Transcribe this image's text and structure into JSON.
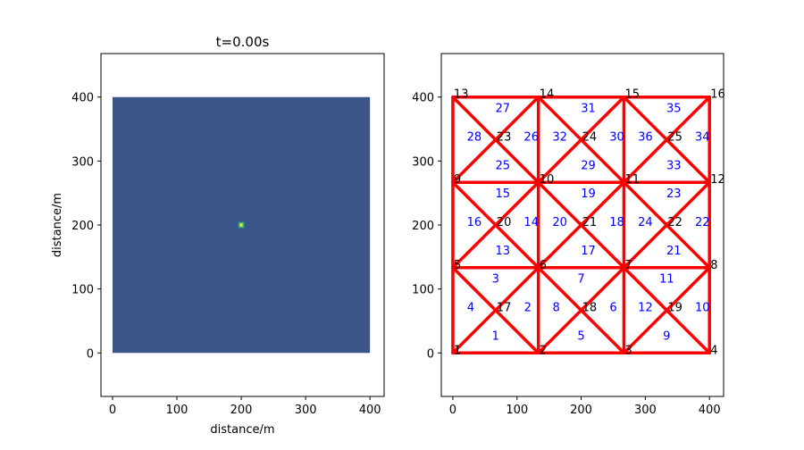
{
  "chart_data": [
    {
      "type": "heatmap",
      "title": "t=0.00s",
      "xlabel": "distance/m",
      "ylabel": "distance/m",
      "xlim": [
        -18,
        422
      ],
      "ylim": [
        -68,
        468
      ],
      "xticks": [
        0,
        100,
        200,
        300,
        400
      ],
      "yticks": [
        0,
        100,
        200,
        300,
        400
      ],
      "field_extent": [
        0,
        400,
        0,
        400
      ],
      "background_color": "#3b568b",
      "source": {
        "x": 200,
        "y": 200,
        "size": 10,
        "colors": [
          "#fde725",
          "#5ec962",
          "#21918c"
        ]
      }
    },
    {
      "type": "mesh",
      "title": "",
      "xlabel": "",
      "ylabel": "",
      "xlim": [
        -18,
        422
      ],
      "ylim": [
        -68,
        468
      ],
      "xticks": [
        0,
        100,
        200,
        300,
        400
      ],
      "yticks": [
        0,
        100,
        200,
        300,
        400
      ],
      "line_color": "#ff0000",
      "nodes": [
        {
          "id": "1",
          "x": 0,
          "y": 0
        },
        {
          "id": "2",
          "x": 133.33,
          "y": 0
        },
        {
          "id": "3",
          "x": 266.67,
          "y": 0
        },
        {
          "id": "4",
          "x": 400,
          "y": 0
        },
        {
          "id": "5",
          "x": 0,
          "y": 133.33
        },
        {
          "id": "6",
          "x": 133.33,
          "y": 133.33
        },
        {
          "id": "7",
          "x": 266.67,
          "y": 133.33
        },
        {
          "id": "8",
          "x": 400,
          "y": 133.33
        },
        {
          "id": "9",
          "x": 0,
          "y": 266.67
        },
        {
          "id": "10",
          "x": 133.33,
          "y": 266.67
        },
        {
          "id": "11",
          "x": 266.67,
          "y": 266.67
        },
        {
          "id": "12",
          "x": 400,
          "y": 266.67
        },
        {
          "id": "13",
          "x": 0,
          "y": 400
        },
        {
          "id": "14",
          "x": 133.33,
          "y": 400
        },
        {
          "id": "15",
          "x": 266.67,
          "y": 400
        },
        {
          "id": "16",
          "x": 400,
          "y": 400
        },
        {
          "id": "17",
          "x": 66.67,
          "y": 66.67
        },
        {
          "id": "18",
          "x": 200,
          "y": 66.67
        },
        {
          "id": "19",
          "x": 333.33,
          "y": 66.67
        },
        {
          "id": "20",
          "x": 66.67,
          "y": 200
        },
        {
          "id": "21",
          "x": 200,
          "y": 200
        },
        {
          "id": "22",
          "x": 333.33,
          "y": 200
        },
        {
          "id": "23",
          "x": 66.67,
          "y": 333.33
        },
        {
          "id": "24",
          "x": 200,
          "y": 333.33
        },
        {
          "id": "25",
          "x": 333.33,
          "y": 333.33
        }
      ],
      "elements": [
        {
          "id": "1",
          "x": 66.67,
          "y": 27.78
        },
        {
          "id": "2",
          "x": 116.67,
          "y": 72.22
        },
        {
          "id": "3",
          "x": 66.67,
          "y": 116.67
        },
        {
          "id": "4",
          "x": 27.78,
          "y": 72.22
        },
        {
          "id": "5",
          "x": 200,
          "y": 27.78
        },
        {
          "id": "6",
          "x": 250,
          "y": 72.22
        },
        {
          "id": "7",
          "x": 200,
          "y": 116.67
        },
        {
          "id": "8",
          "x": 161.11,
          "y": 72.22
        },
        {
          "id": "9",
          "x": 333.33,
          "y": 27.78
        },
        {
          "id": "10",
          "x": 388.89,
          "y": 72.22
        },
        {
          "id": "11",
          "x": 333.33,
          "y": 116.67
        },
        {
          "id": "12",
          "x": 300,
          "y": 72.22
        },
        {
          "id": "13",
          "x": 77.78,
          "y": 161.11
        },
        {
          "id": "14",
          "x": 122.22,
          "y": 205.56
        },
        {
          "id": "15",
          "x": 77.78,
          "y": 250
        },
        {
          "id": "16",
          "x": 33.33,
          "y": 205.56
        },
        {
          "id": "17",
          "x": 211.11,
          "y": 161.11
        },
        {
          "id": "18",
          "x": 255.56,
          "y": 205.56
        },
        {
          "id": "19",
          "x": 211.11,
          "y": 250
        },
        {
          "id": "20",
          "x": 166.67,
          "y": 205.56
        },
        {
          "id": "21",
          "x": 344.44,
          "y": 161.11
        },
        {
          "id": "22",
          "x": 388.89,
          "y": 205.56
        },
        {
          "id": "23",
          "x": 344.44,
          "y": 250
        },
        {
          "id": "24",
          "x": 300,
          "y": 205.56
        },
        {
          "id": "25",
          "x": 77.78,
          "y": 294.44
        },
        {
          "id": "26",
          "x": 122.22,
          "y": 338.89
        },
        {
          "id": "27",
          "x": 77.78,
          "y": 383.33
        },
        {
          "id": "28",
          "x": 33.33,
          "y": 338.89
        },
        {
          "id": "29",
          "x": 211.11,
          "y": 294.44
        },
        {
          "id": "30",
          "x": 255.56,
          "y": 338.89
        },
        {
          "id": "31",
          "x": 211.11,
          "y": 383.33
        },
        {
          "id": "32",
          "x": 166.67,
          "y": 338.89
        },
        {
          "id": "33",
          "x": 344.44,
          "y": 294.44
        },
        {
          "id": "34",
          "x": 388.89,
          "y": 338.89
        },
        {
          "id": "35",
          "x": 344.44,
          "y": 383.33
        },
        {
          "id": "36",
          "x": 300,
          "y": 338.89
        }
      ]
    }
  ]
}
